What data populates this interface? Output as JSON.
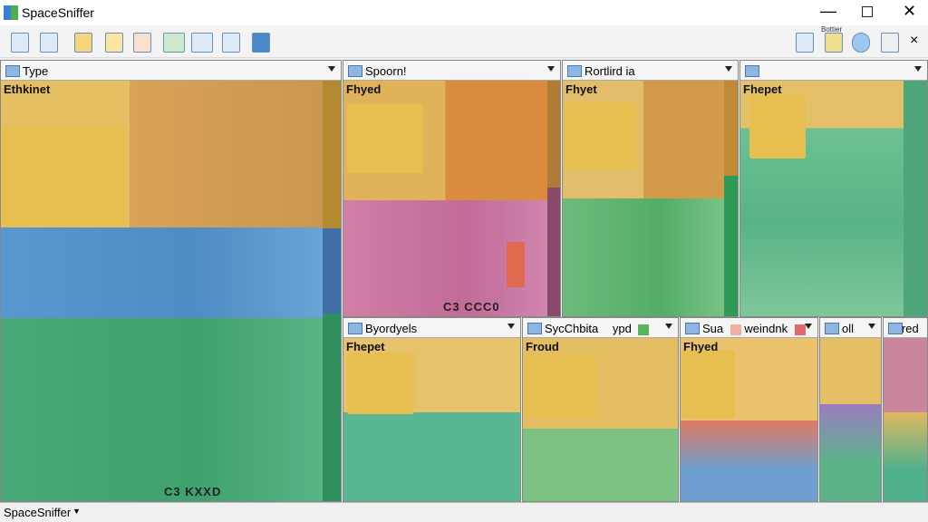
{
  "window": {
    "title": "SpaceSniffer"
  },
  "toolbar": {
    "label": "Bottier"
  },
  "panels": [
    {
      "header": "Type",
      "label": "Ethkinet",
      "footer": "C3 KXXD"
    },
    {
      "header": "Spoorn!",
      "label": "Fhyed",
      "footer": "C3 CCC0"
    },
    {
      "header": "Rortlird ia",
      "label": "Fhyet"
    },
    {
      "label": "Fhepet"
    },
    {
      "header": "Byordyels",
      "label": "Fhepet"
    },
    {
      "header": "SycChbita",
      "header2": "ypd",
      "label": "Froud"
    },
    {
      "header": "Sua",
      "header2": "weindnk",
      "label": "Fhyed"
    },
    {
      "header": "oll"
    },
    {
      "header": "Fred"
    }
  ],
  "status": {
    "text": "SpaceSniffer"
  }
}
